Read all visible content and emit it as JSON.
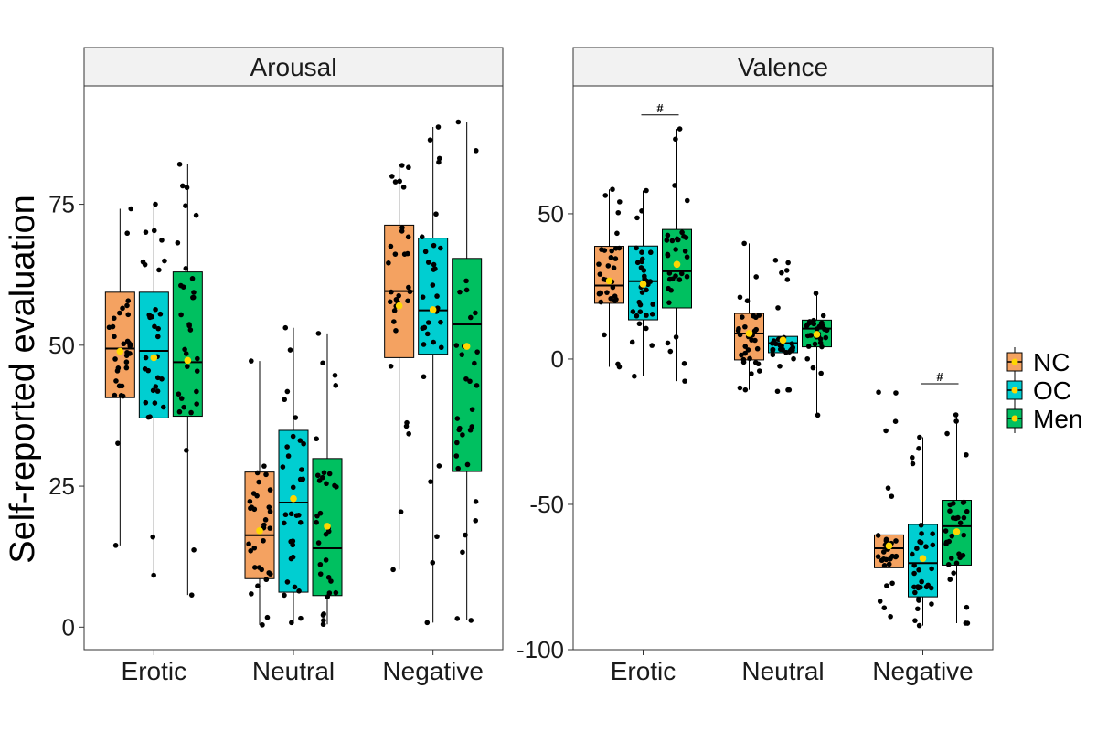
{
  "ylabel": "Self-reported evaluation",
  "categories": [
    "Erotic",
    "Neutral",
    "Negative"
  ],
  "legend": [
    {
      "name": "NC",
      "color": "#F4A261"
    },
    {
      "name": "OC",
      "color": "#00CED1"
    },
    {
      "name": "Men",
      "color": "#00C060"
    }
  ],
  "mean_color": "#FFD700",
  "chart_data": [
    {
      "type": "box",
      "title": "Arousal",
      "ylim": [
        -4,
        96
      ],
      "yticks": [
        0,
        25,
        50,
        75
      ],
      "groups": [
        "NC",
        "OC",
        "Men"
      ],
      "boxes": [
        {
          "category": "Erotic",
          "group": "NC",
          "min": 14.5,
          "q1": 40.7,
          "median": 49.4,
          "q3": 59.4,
          "max": 74.2,
          "mean": 48.9
        },
        {
          "category": "Erotic",
          "group": "OC",
          "min": 9.2,
          "q1": 37.1,
          "median": 49.0,
          "q3": 59.4,
          "max": 75.0,
          "mean": 47.8
        },
        {
          "category": "Erotic",
          "group": "Men",
          "min": 5.7,
          "q1": 37.4,
          "median": 47.0,
          "q3": 63.0,
          "max": 82.1,
          "mean": 47.3
        },
        {
          "category": "Neutral",
          "group": "NC",
          "min": 0.4,
          "q1": 8.6,
          "median": 16.3,
          "q3": 27.5,
          "max": 47.2,
          "mean": 17.1
        },
        {
          "category": "Neutral",
          "group": "OC",
          "min": 0.8,
          "q1": 6.2,
          "median": 22.1,
          "q3": 34.9,
          "max": 53.1,
          "mean": 22.8
        },
        {
          "category": "Neutral",
          "group": "Men",
          "min": 0.5,
          "q1": 5.6,
          "median": 14.0,
          "q3": 29.9,
          "max": 52.1,
          "mean": 17.9
        },
        {
          "category": "Negative",
          "group": "NC",
          "min": 10.2,
          "q1": 47.8,
          "median": 59.6,
          "q3": 71.3,
          "max": 81.9,
          "mean": 57.0
        },
        {
          "category": "Negative",
          "group": "OC",
          "min": 0.8,
          "q1": 48.4,
          "median": 56.2,
          "q3": 69.0,
          "max": 88.7,
          "mean": 56.3
        },
        {
          "category": "Negative",
          "group": "Men",
          "min": 1.2,
          "q1": 27.6,
          "median": 53.7,
          "q3": 65.4,
          "max": 89.6,
          "mean": 49.8
        }
      ],
      "annotations": []
    },
    {
      "type": "box",
      "title": "Valence",
      "ylim": [
        -100,
        94
      ],
      "yticks": [
        -100,
        -50,
        0,
        50
      ],
      "groups": [
        "NC",
        "OC",
        "Men"
      ],
      "boxes": [
        {
          "category": "Erotic",
          "group": "NC",
          "min": -2.7,
          "q1": 19.2,
          "median": 25.3,
          "q3": 38.8,
          "max": 58.4,
          "mean": 26.9
        },
        {
          "category": "Erotic",
          "group": "OC",
          "min": -5.9,
          "q1": 13.5,
          "median": 26.8,
          "q3": 38.9,
          "max": 58.0,
          "mean": 25.8
        },
        {
          "category": "Erotic",
          "group": "Men",
          "min": -7.6,
          "q1": 17.6,
          "median": 30.2,
          "q3": 44.6,
          "max": 79.2,
          "mean": 32.6
        },
        {
          "category": "Neutral",
          "group": "NC",
          "min": -10.6,
          "q1": -0.3,
          "median": 8.8,
          "q3": 15.7,
          "max": 39.8,
          "mean": 8.8
        },
        {
          "category": "Neutral",
          "group": "OC",
          "min": -11.1,
          "q1": 2.2,
          "median": 5.5,
          "q3": 7.8,
          "max": 34.0,
          "mean": 6.5
        },
        {
          "category": "Neutral",
          "group": "Men",
          "min": -19.3,
          "q1": 4.2,
          "median": 10.5,
          "q3": 13.4,
          "max": 22.6,
          "mean": 8.5
        },
        {
          "category": "Negative",
          "group": "NC",
          "min": -88.6,
          "q1": -71.8,
          "median": -65.1,
          "q3": -60.5,
          "max": -11.4,
          "mean": -64.3
        },
        {
          "category": "Negative",
          "group": "OC",
          "min": -91.7,
          "q1": -81.8,
          "median": -70.2,
          "q3": -56.9,
          "max": -26.9,
          "mean": -68.6
        },
        {
          "category": "Negative",
          "group": "Men",
          "min": -90.9,
          "q1": -70.9,
          "median": -57.5,
          "q3": -48.6,
          "max": -19.2,
          "mean": -59.4
        }
      ],
      "annotations": [
        {
          "category": "Erotic",
          "y": 84,
          "text": "#"
        },
        {
          "category": "Negative",
          "y": -8.5,
          "text": "#"
        }
      ]
    }
  ]
}
